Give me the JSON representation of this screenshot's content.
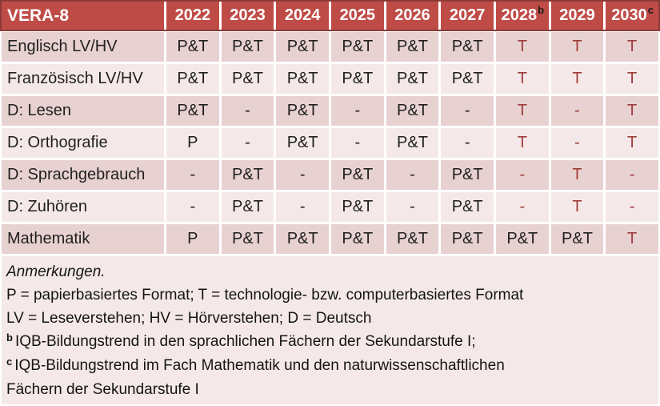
{
  "title": "VERA-8",
  "columns": [
    {
      "year": "2022",
      "sup": ""
    },
    {
      "year": "2023",
      "sup": ""
    },
    {
      "year": "2024",
      "sup": ""
    },
    {
      "year": "2025",
      "sup": ""
    },
    {
      "year": "2026",
      "sup": ""
    },
    {
      "year": "2027",
      "sup": ""
    },
    {
      "year": "2028",
      "sup": "b"
    },
    {
      "year": "2029",
      "sup": ""
    },
    {
      "year": "2030",
      "sup": "c"
    }
  ],
  "rows": [
    {
      "label": "Englisch LV/HV",
      "cells": [
        {
          "v": "P&T",
          "tech": false
        },
        {
          "v": "P&T",
          "tech": false
        },
        {
          "v": "P&T",
          "tech": false
        },
        {
          "v": "P&T",
          "tech": false
        },
        {
          "v": "P&T",
          "tech": false
        },
        {
          "v": "P&T",
          "tech": false
        },
        {
          "v": "T",
          "tech": true
        },
        {
          "v": "T",
          "tech": true
        },
        {
          "v": "T",
          "tech": true
        }
      ]
    },
    {
      "label": "Französisch LV/HV",
      "cells": [
        {
          "v": "P&T",
          "tech": false
        },
        {
          "v": "P&T",
          "tech": false
        },
        {
          "v": "P&T",
          "tech": false
        },
        {
          "v": "P&T",
          "tech": false
        },
        {
          "v": "P&T",
          "tech": false
        },
        {
          "v": "P&T",
          "tech": false
        },
        {
          "v": "T",
          "tech": true
        },
        {
          "v": "T",
          "tech": true
        },
        {
          "v": "T",
          "tech": true
        }
      ]
    },
    {
      "label": "D: Lesen",
      "cells": [
        {
          "v": "P&T",
          "tech": false
        },
        {
          "v": "-",
          "tech": false
        },
        {
          "v": "P&T",
          "tech": false
        },
        {
          "v": "-",
          "tech": false
        },
        {
          "v": "P&T",
          "tech": false
        },
        {
          "v": "-",
          "tech": false
        },
        {
          "v": "T",
          "tech": true
        },
        {
          "v": "-",
          "tech": true
        },
        {
          "v": "T",
          "tech": true
        }
      ]
    },
    {
      "label": "D: Orthografie",
      "cells": [
        {
          "v": "P",
          "tech": false
        },
        {
          "v": "-",
          "tech": false
        },
        {
          "v": "P&T",
          "tech": false
        },
        {
          "v": "-",
          "tech": false
        },
        {
          "v": "P&T",
          "tech": false
        },
        {
          "v": "-",
          "tech": false
        },
        {
          "v": "T",
          "tech": true
        },
        {
          "v": "-",
          "tech": true
        },
        {
          "v": "T",
          "tech": true
        }
      ]
    },
    {
      "label": "D: Sprachgebrauch",
      "cells": [
        {
          "v": "-",
          "tech": false
        },
        {
          "v": "P&T",
          "tech": false
        },
        {
          "v": "-",
          "tech": false
        },
        {
          "v": "P&T",
          "tech": false
        },
        {
          "v": "-",
          "tech": false
        },
        {
          "v": "P&T",
          "tech": false
        },
        {
          "v": "-",
          "tech": true
        },
        {
          "v": "T",
          "tech": true
        },
        {
          "v": "-",
          "tech": true
        }
      ]
    },
    {
      "label": "D: Zuhören",
      "cells": [
        {
          "v": "-",
          "tech": false
        },
        {
          "v": "P&T",
          "tech": false
        },
        {
          "v": "-",
          "tech": false
        },
        {
          "v": "P&T",
          "tech": false
        },
        {
          "v": "-",
          "tech": false
        },
        {
          "v": "P&T",
          "tech": false
        },
        {
          "v": "-",
          "tech": true
        },
        {
          "v": "T",
          "tech": true
        },
        {
          "v": "-",
          "tech": true
        }
      ]
    },
    {
      "label": "Mathematik",
      "cells": [
        {
          "v": "P",
          "tech": false
        },
        {
          "v": "P&T",
          "tech": false
        },
        {
          "v": "P&T",
          "tech": false
        },
        {
          "v": "P&T",
          "tech": false
        },
        {
          "v": "P&T",
          "tech": false
        },
        {
          "v": "P&T",
          "tech": false
        },
        {
          "v": "P&T",
          "tech": false
        },
        {
          "v": "P&T",
          "tech": false
        },
        {
          "v": "T",
          "tech": true
        }
      ]
    }
  ],
  "notes": [
    {
      "italic": true,
      "sup": "",
      "text": "Anmerkungen."
    },
    {
      "italic": false,
      "sup": "",
      "text": "P = papierbasiertes Format; T = technologie- bzw. computerbasiertes Format"
    },
    {
      "italic": false,
      "sup": "",
      "text": "LV = Leseverstehen; HV = Hörverstehen; D = Deutsch"
    },
    {
      "italic": false,
      "sup": "b",
      "text": "IQB-Bildungstrend in den sprachlichen Fächern der Sekundarstufe I;"
    },
    {
      "italic": false,
      "sup": "c",
      "text": "IQB-Bildungstrend im Fach Mathematik und den naturwissenschaftlichen"
    },
    {
      "italic": false,
      "sup": "",
      "text": "Fächern der Sekundarstufe I"
    }
  ],
  "colors": {
    "header_bg": "#BF4B47",
    "header_border": "#8C3A36",
    "header_text": "#FFFFFF",
    "row_dark": "#E8D2D1",
    "row_light": "#F4E9E8",
    "notes_bg": "#F4E9E8",
    "cell_text": "#1F1F1F",
    "tech_text": "#9E3B38",
    "separator": "#FFFFFF"
  }
}
